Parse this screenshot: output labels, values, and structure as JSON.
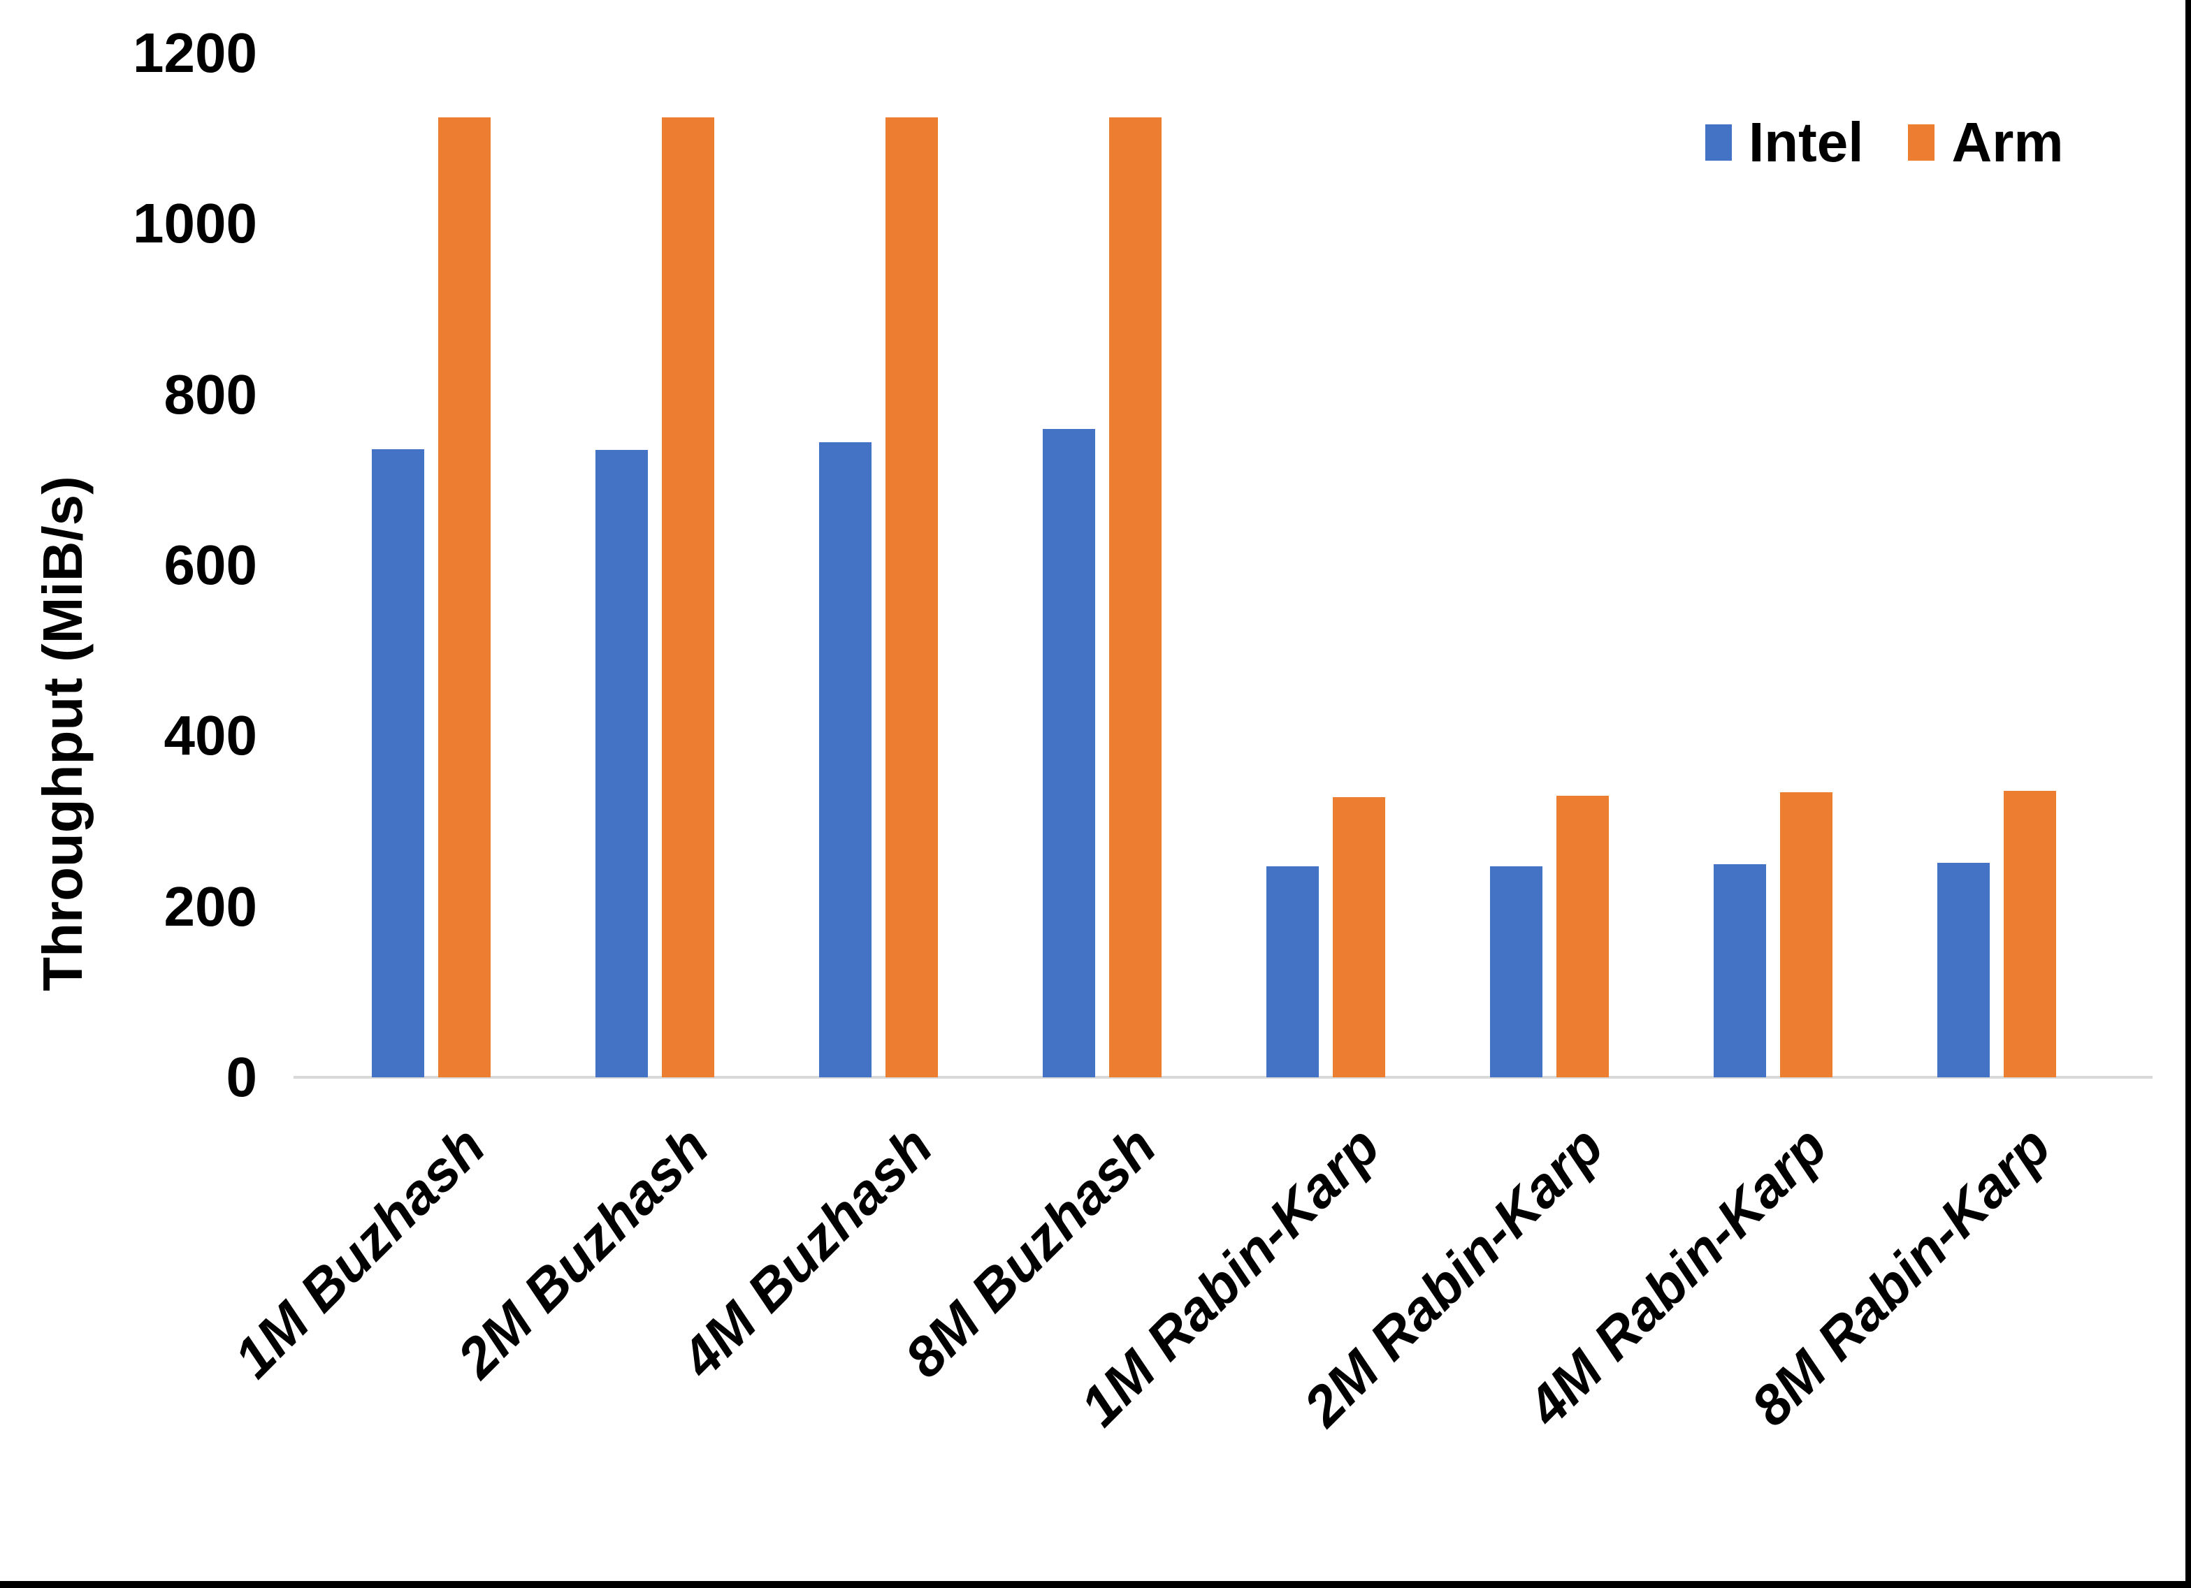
{
  "y_axis": {
    "title": "Throughput (MiB/s)",
    "tick_values": [
      0,
      200,
      400,
      600,
      800,
      1000,
      1200
    ]
  },
  "legend": {
    "items": [
      {
        "label": "Intel",
        "color": "#4472C4"
      },
      {
        "label": "Arm",
        "color": "#ED7D31"
      }
    ]
  },
  "chart_data": {
    "type": "bar",
    "title": "",
    "categories": [
      "1M Buzhash",
      "2M Buzhash",
      "4M Buzhash",
      "8M Buzhash",
      "1M Rabin-Karp",
      "2M Rabin-Karp",
      "4M Rabin-Karp",
      "8M Rabin-Karp"
    ],
    "series": [
      {
        "name": "Intel",
        "color": "#4472C4",
        "values": [
          736,
          735,
          744,
          760,
          247,
          247,
          250,
          251
        ]
      },
      {
        "name": "Arm",
        "color": "#ED7D31",
        "values": [
          1125,
          1125,
          1125,
          1125,
          328,
          330,
          334,
          336
        ]
      }
    ],
    "xlabel": "",
    "ylabel": "Throughput (MiB/s)",
    "ylim": [
      0,
      1200
    ],
    "ytick_interval": 200,
    "grid": false,
    "legend_position": "top-right"
  }
}
